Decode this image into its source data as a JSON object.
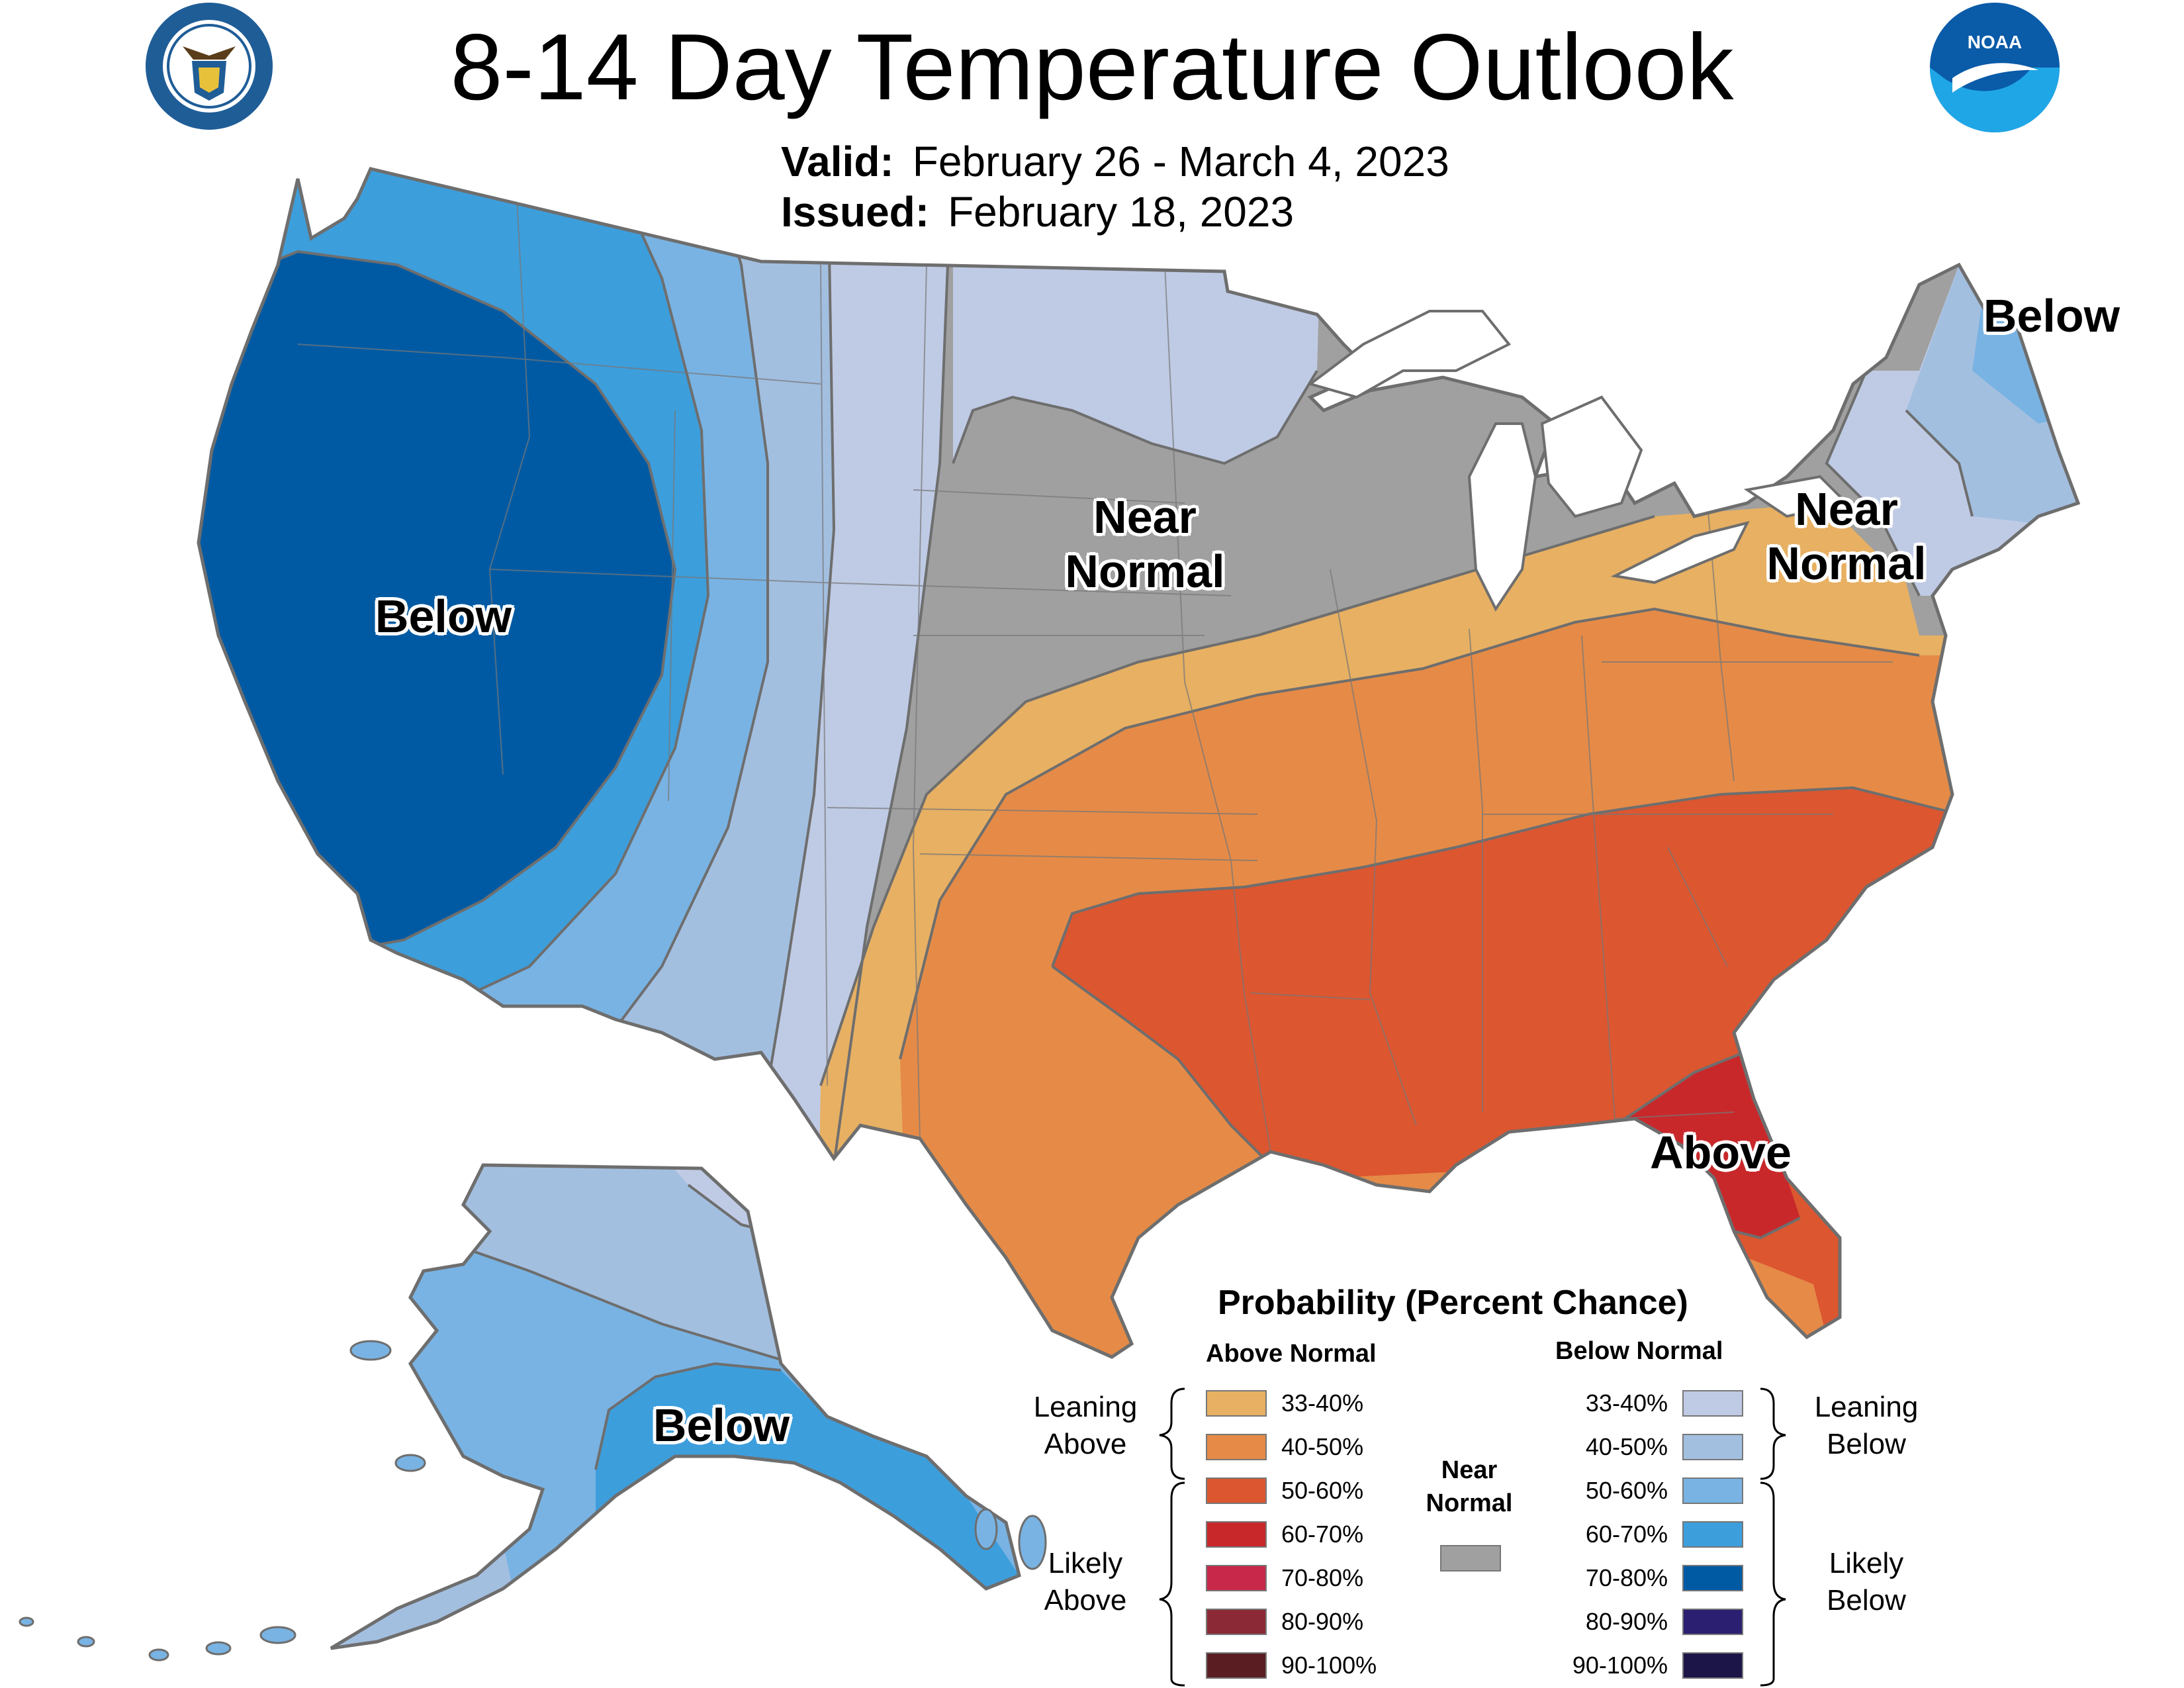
{
  "title": "8-14 Day Temperature Outlook",
  "valid": {
    "label": "Valid:",
    "value": "February 26 - March 4, 2023"
  },
  "issued": {
    "label": "Issued:",
    "value": "February 18, 2023"
  },
  "logos": {
    "left": "department-of-commerce-seal-icon",
    "right": "noaa-logo-icon",
    "noaa_text": "NOAA"
  },
  "region_labels": {
    "west_below": "Below",
    "central_near_normal": [
      "Near",
      "Normal"
    ],
    "northeast_below": "Below",
    "northeast_near_normal": [
      "Near",
      "Normal"
    ],
    "southeast_above": "Above",
    "alaska_below": "Below"
  },
  "colors": {
    "above_33_40": "#E8B062",
    "above_40_50": "#E58B47",
    "above_50_60": "#DC5630",
    "above_60_70": "#C9282B",
    "above_70_80": "#C8284A",
    "above_80_90": "#8B2A36",
    "above_90_100": "#5A1E22",
    "near_normal": "#A0A0A0",
    "below_33_40": "#BFCBE5",
    "below_40_50": "#A3BFE0",
    "below_50_60": "#79B3E3",
    "below_60_70": "#3D9EDC",
    "below_70_80": "#005AA3",
    "below_80_90": "#2A1F70",
    "below_90_100": "#1C1548",
    "state_line": "#777777"
  },
  "legend": {
    "title": "Probability (Percent Chance)",
    "above_header": "Above Normal",
    "below_header": "Below Normal",
    "near_header": [
      "Near",
      "Normal"
    ],
    "leaning_above": [
      "Leaning",
      "Above"
    ],
    "likely_above": [
      "Likely",
      "Above"
    ],
    "leaning_below": [
      "Leaning",
      "Below"
    ],
    "likely_below": [
      "Likely",
      "Below"
    ],
    "above": [
      {
        "label": "33-40%",
        "color": "#E8B062"
      },
      {
        "label": "40-50%",
        "color": "#E58B47"
      },
      {
        "label": "50-60%",
        "color": "#DC5630"
      },
      {
        "label": "60-70%",
        "color": "#C9282B"
      },
      {
        "label": "70-80%",
        "color": "#C8284A"
      },
      {
        "label": "80-90%",
        "color": "#8B2A36"
      },
      {
        "label": "90-100%",
        "color": "#5A1E22"
      }
    ],
    "below": [
      {
        "label": "33-40%",
        "color": "#BFCBE5"
      },
      {
        "label": "40-50%",
        "color": "#A3BFE0"
      },
      {
        "label": "50-60%",
        "color": "#79B3E3"
      },
      {
        "label": "60-70%",
        "color": "#3D9EDC"
      },
      {
        "label": "70-80%",
        "color": "#005AA3"
      },
      {
        "label": "80-90%",
        "color": "#2A1F70"
      },
      {
        "label": "90-100%",
        "color": "#1C1548"
      }
    ],
    "near_color": "#A0A0A0"
  }
}
